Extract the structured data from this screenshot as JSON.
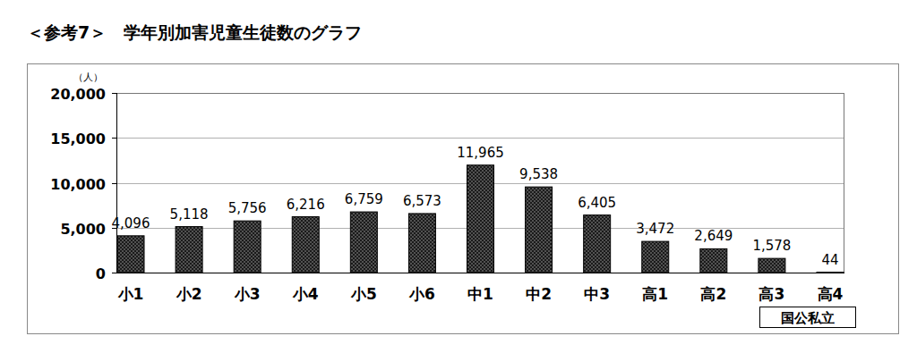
{
  "chart_data": {
    "type": "bar",
    "title": "＜参考7＞　学年別加害児童生徒数のグラフ",
    "y_label": "（人）",
    "categories": [
      "小1",
      "小2",
      "小3",
      "小4",
      "小5",
      "小6",
      "中1",
      "中2",
      "中3",
      "高1",
      "高2",
      "高3",
      "高4"
    ],
    "values": [
      4096,
      5118,
      5756,
      6216,
      6759,
      6573,
      11965,
      9538,
      6405,
      3472,
      2649,
      1578,
      44
    ],
    "value_labels": [
      "4,096",
      "5,118",
      "5,756",
      "6,216",
      "6,759",
      "6,573",
      "11,965",
      "9,538",
      "6,405",
      "3,472",
      "2,649",
      "1,578",
      "44"
    ],
    "color": "#1a1a1a",
    "ylim": [
      0,
      20000
    ],
    "yticks": [
      0,
      {
        "value": 5000,
        "label": "5,000"
      },
      {
        "value": 10000,
        "label": "10,000"
      },
      {
        "value": 15000,
        "label": "15,000"
      },
      {
        "value": 20000,
        "label": "20,000"
      }
    ],
    "grid": true,
    "data_labels": true,
    "annotations": [
      "国公私立"
    ]
  }
}
